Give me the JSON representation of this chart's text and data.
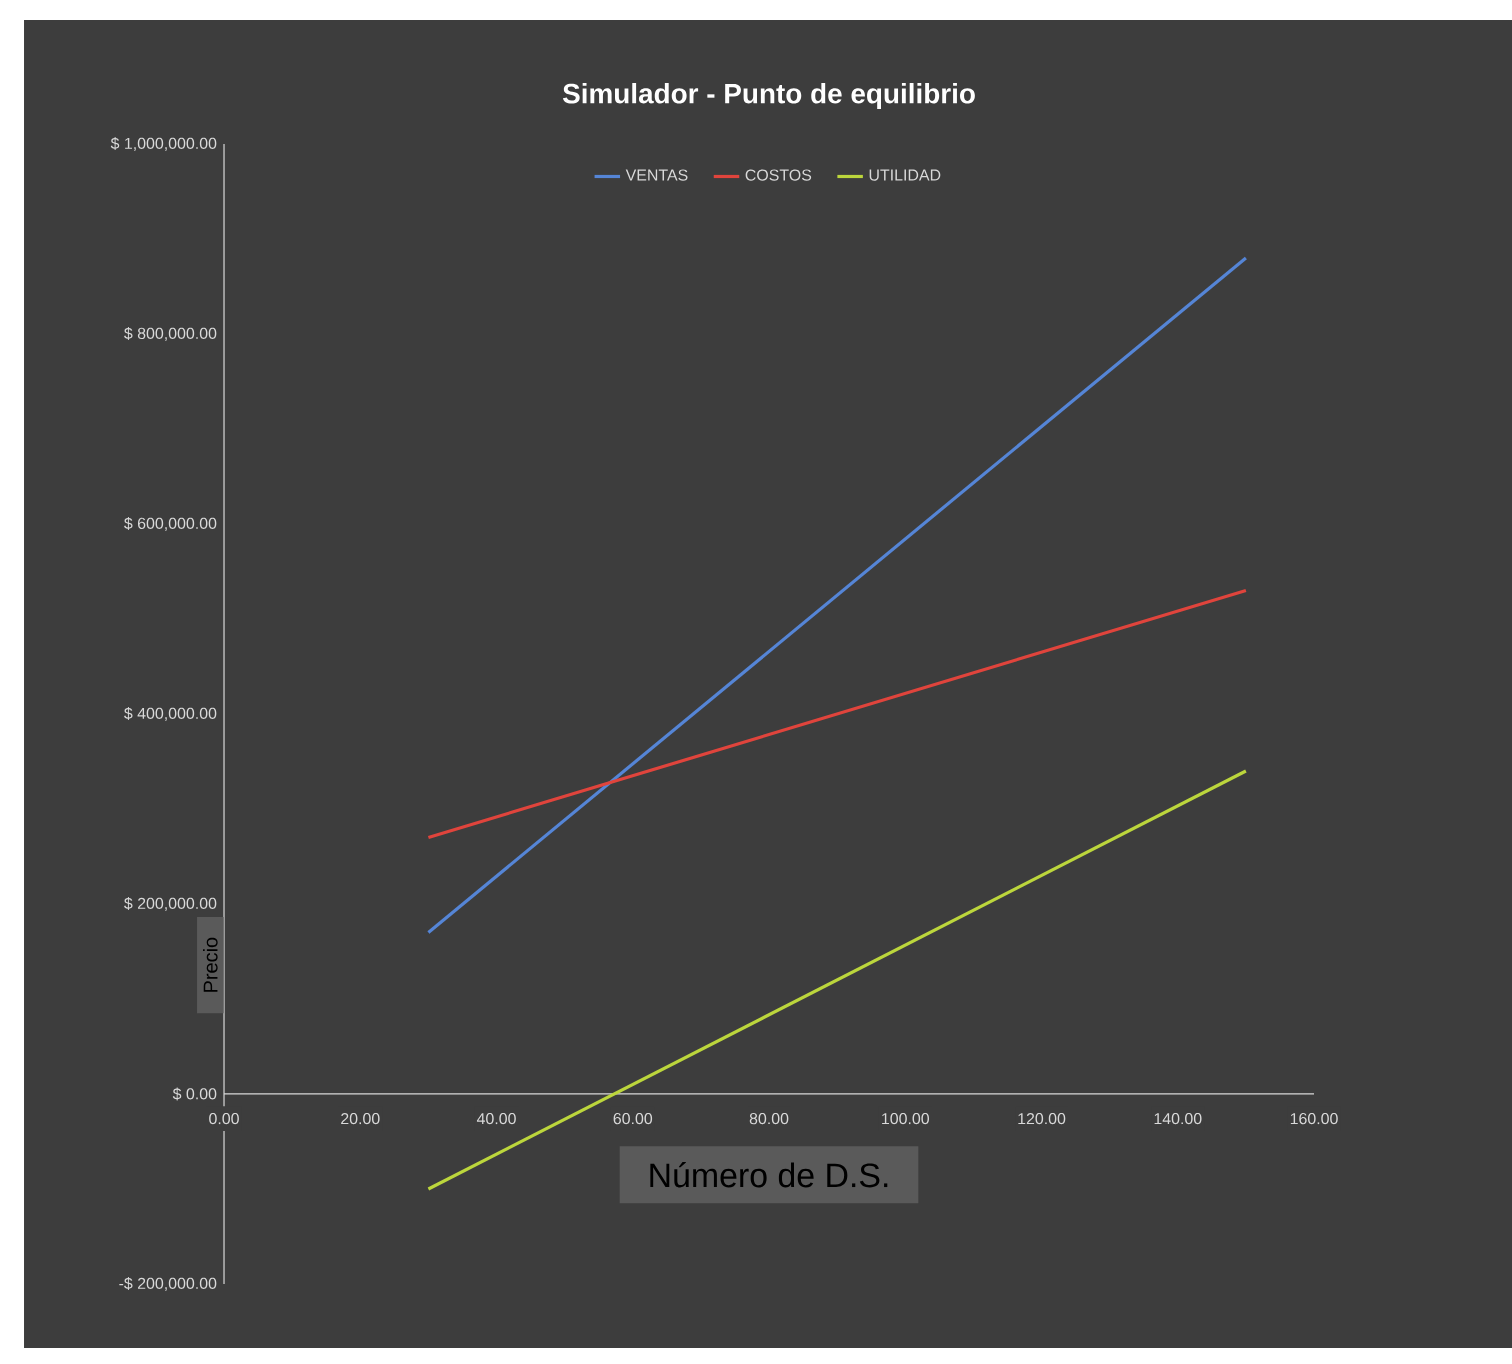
{
  "chart_data": {
    "type": "line",
    "title": "Simulador - Punto de equilibrio",
    "xlabel": "Número de D.S.",
    "ylabel": "Precio",
    "x": [
      30,
      150
    ],
    "series": [
      {
        "name": "VENTAS",
        "color": "#5585d6",
        "values": [
          170000,
          880000
        ]
      },
      {
        "name": "COSTOS",
        "color": "#e0443c",
        "values": [
          270000,
          530000
        ]
      },
      {
        "name": "UTILIDAD",
        "color": "#bcd63c",
        "values": [
          -100000,
          340000
        ]
      }
    ],
    "xlim": [
      0,
      160
    ],
    "xticks": [
      {
        "value": 0,
        "label": "0.00"
      },
      {
        "value": 20,
        "label": "20.00"
      },
      {
        "value": 40,
        "label": "40.00"
      },
      {
        "value": 60,
        "label": "60.00"
      },
      {
        "value": 80,
        "label": "80.00"
      },
      {
        "value": 100,
        "label": "100.00"
      },
      {
        "value": 120,
        "label": "120.00"
      },
      {
        "value": 140,
        "label": "140.00"
      },
      {
        "value": 160,
        "label": "160.00"
      }
    ],
    "ylim": [
      -200000,
      1000000
    ],
    "yticks": [
      {
        "value": -200000,
        "label": "-$ 200,000.00"
      },
      {
        "value": 0,
        "label": "$ 0.00"
      },
      {
        "value": 200000,
        "label": "$ 200,000.00"
      },
      {
        "value": 400000,
        "label": "$ 400,000.00"
      },
      {
        "value": 600000,
        "label": "$ 600,000.00"
      },
      {
        "value": 800000,
        "label": "$ 800,000.00"
      },
      {
        "value": 1000000,
        "label": "$ 1,000,000.00"
      }
    ],
    "legend": "top"
  }
}
